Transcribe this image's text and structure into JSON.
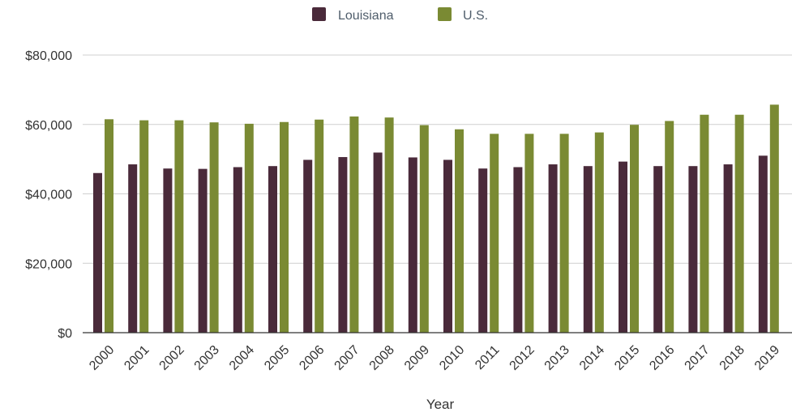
{
  "chart_data": {
    "type": "bar",
    "xlabel": "Year",
    "ylabel": "",
    "ylim": [
      0,
      80000
    ],
    "yticks": [
      0,
      20000,
      40000,
      60000,
      80000
    ],
    "ytick_labels": [
      "$0",
      "$20,000",
      "$40,000",
      "$60,000",
      "$80,000"
    ],
    "grid": true,
    "legend_position": "top-center",
    "categories": [
      "2000",
      "2001",
      "2002",
      "2003",
      "2004",
      "2005",
      "2006",
      "2007",
      "2008",
      "2009",
      "2010",
      "2011",
      "2012",
      "2013",
      "2014",
      "2015",
      "2016",
      "2017",
      "2018",
      "2019"
    ],
    "series": [
      {
        "name": "Louisiana",
        "color": "#4a2a3a",
        "values": [
          46000,
          48500,
          47300,
          47200,
          47700,
          48000,
          49800,
          50600,
          51900,
          50500,
          49800,
          47300,
          47700,
          48500,
          48000,
          49300,
          48000,
          48000,
          48500,
          51000
        ]
      },
      {
        "name": "U.S.",
        "color": "#7a8a33",
        "values": [
          61500,
          61200,
          61200,
          60600,
          60200,
          60700,
          61400,
          62300,
          62000,
          59800,
          58600,
          57300,
          57300,
          57300,
          57700,
          59900,
          61000,
          62800,
          62800,
          65700
        ]
      }
    ]
  }
}
